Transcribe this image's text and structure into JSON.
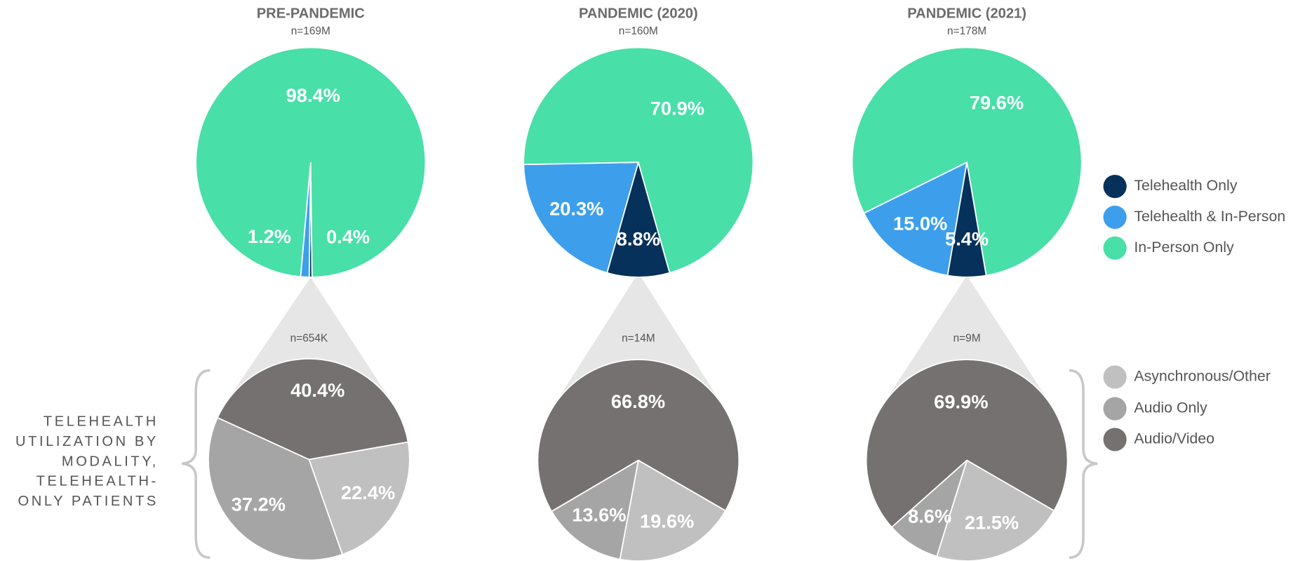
{
  "annotation": [
    "TELEHEALTH",
    "UTILIZATION BY",
    "MODALITY,",
    "TELEHEALTH-",
    "ONLY PATIENTS"
  ],
  "chart_data": [
    {
      "type": "pie",
      "title": "PRE-PANDEMIC",
      "subtitle": "n=169M",
      "categories": [
        "Telehealth Only",
        "Telehealth & In-Person",
        "In-Person Only"
      ],
      "values": [
        0.4,
        1.2,
        98.4
      ],
      "value_labels": [
        "0.4%",
        "1.2%",
        "98.4%"
      ],
      "colors": [
        "#06315a",
        "#3d9fec",
        "#48dfa8"
      ]
    },
    {
      "type": "pie",
      "title": "PANDEMIC (2020)",
      "subtitle": "n=160M",
      "categories": [
        "Telehealth Only",
        "Telehealth & In-Person",
        "In-Person Only"
      ],
      "values": [
        8.8,
        20.3,
        70.9
      ],
      "value_labels": [
        "8.8%",
        "20.3%",
        "70.9%"
      ],
      "colors": [
        "#06315a",
        "#3d9fec",
        "#48dfa8"
      ]
    },
    {
      "type": "pie",
      "title": "PANDEMIC (2021)",
      "subtitle": "n=178M",
      "categories": [
        "Telehealth Only",
        "Telehealth & In-Person",
        "In-Person Only"
      ],
      "values": [
        5.4,
        15.0,
        79.6
      ],
      "value_labels": [
        "5.4%",
        "15.0%",
        "79.6%"
      ],
      "colors": [
        "#06315a",
        "#3d9fec",
        "#48dfa8"
      ]
    },
    {
      "type": "pie",
      "subtitle": "n=654K",
      "categories": [
        "Asynchronous/Other",
        "Audio Only",
        "Audio/Video"
      ],
      "values": [
        22.4,
        37.2,
        40.4
      ],
      "value_labels": [
        "22.4%",
        "37.2%",
        "40.4%"
      ],
      "colors": [
        "#c0c0c0",
        "#a5a5a5",
        "#757171"
      ]
    },
    {
      "type": "pie",
      "subtitle": "n=14M",
      "categories": [
        "Asynchronous/Other",
        "Audio Only",
        "Audio/Video"
      ],
      "values": [
        19.6,
        13.6,
        66.8
      ],
      "value_labels": [
        "19.6%",
        "13.6%",
        "66.8%"
      ],
      "colors": [
        "#c0c0c0",
        "#a5a5a5",
        "#757171"
      ]
    },
    {
      "type": "pie",
      "subtitle": "n=9M",
      "categories": [
        "Asynchronous/Other",
        "Audio Only",
        "Audio/Video"
      ],
      "values": [
        21.5,
        8.6,
        69.9
      ],
      "value_labels": [
        "21.5%",
        "8.6%",
        "69.9%"
      ],
      "colors": [
        "#c0c0c0",
        "#a5a5a5",
        "#757171"
      ]
    }
  ]
}
